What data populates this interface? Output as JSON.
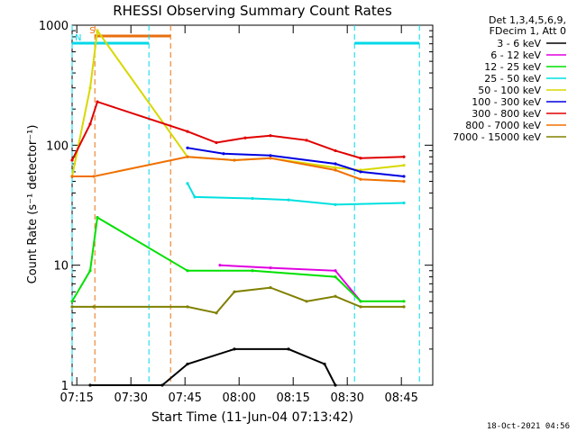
{
  "chart_data": {
    "type": "line",
    "title": "RHESSI Observing Summary Count Rates",
    "xlabel": "Start Time (11-Jun-04 07:13:42)",
    "ylabel": "Count Rate (s⁻¹ detector⁻¹)",
    "yscale": "log",
    "ylim": [
      1,
      1000
    ],
    "xlim_minutes_after_0713_42": [
      0,
      100
    ],
    "xticks": [
      "07:15",
      "07:30",
      "07:45",
      "08:00",
      "08:15",
      "08:30",
      "08:45"
    ],
    "yticks": [
      "1",
      "10",
      "100",
      "1000"
    ],
    "legend_header": [
      "Det 1,3,4,5,6,9,",
      "FDecim 1, Att 0"
    ],
    "legend_position": "right",
    "timestamp": "18-Oct-2021 04:56",
    "flags": [
      {
        "label": "S",
        "color": "#e87010",
        "start": "07:20",
        "end": "07:41"
      },
      {
        "label": "N",
        "color": "#00d8e8",
        "start": "07:13:42",
        "end": "07:35"
      },
      {
        "label": "",
        "color": "#00d8e8",
        "start": "08:32",
        "end": "08:50"
      }
    ],
    "series": [
      {
        "name": "3 - 6 keV",
        "color": "#000000",
        "values": [
          [
            5,
            1
          ],
          [
            25,
            1
          ],
          [
            32,
            1.5
          ],
          [
            45,
            2
          ],
          [
            60,
            2
          ],
          [
            70,
            1.5
          ],
          [
            73,
            1
          ]
        ]
      },
      {
        "name": "6 - 12 keV",
        "color": "#e000e0",
        "values": [
          [
            41,
            10
          ],
          [
            55,
            9.5
          ],
          [
            73,
            9
          ],
          [
            80,
            5
          ]
        ]
      },
      {
        "name": "12 - 25 keV",
        "color": "#00e000",
        "values": [
          [
            0,
            5
          ],
          [
            5,
            9
          ],
          [
            7,
            25
          ],
          [
            32,
            9
          ],
          [
            50,
            9
          ],
          [
            73,
            8
          ],
          [
            80,
            5
          ],
          [
            92,
            5
          ]
        ]
      },
      {
        "name": "25 - 50 keV",
        "color": "#00e0e0",
        "values": [
          [
            32,
            48
          ],
          [
            34,
            37
          ],
          [
            50,
            36
          ],
          [
            60,
            35
          ],
          [
            73,
            32
          ],
          [
            92,
            33
          ]
        ]
      },
      {
        "name": "50 - 100 keV",
        "color": "#d8d800",
        "values": [
          [
            0,
            55
          ],
          [
            5,
            300
          ],
          [
            7,
            900
          ],
          [
            32,
            80
          ],
          [
            45,
            75
          ],
          [
            55,
            78
          ],
          [
            73,
            65
          ],
          [
            80,
            62
          ],
          [
            92,
            68
          ]
        ]
      },
      {
        "name": "100 - 300 keV",
        "color": "#0000e0",
        "values": [
          [
            32,
            95
          ],
          [
            42,
            85
          ],
          [
            55,
            82
          ],
          [
            73,
            70
          ],
          [
            80,
            60
          ],
          [
            92,
            55
          ]
        ]
      },
      {
        "name": "300 - 800 keV",
        "color": "#e00000",
        "values": [
          [
            0,
            75
          ],
          [
            5,
            150
          ],
          [
            7,
            230
          ],
          [
            32,
            130
          ],
          [
            40,
            105
          ],
          [
            48,
            115
          ],
          [
            55,
            120
          ],
          [
            65,
            110
          ],
          [
            73,
            90
          ],
          [
            80,
            78
          ],
          [
            92,
            80
          ]
        ]
      },
      {
        "name": "800 - 7000 keV",
        "color": "#f07000",
        "values": [
          [
            0,
            55
          ],
          [
            6,
            55
          ],
          [
            32,
            80
          ],
          [
            45,
            75
          ],
          [
            55,
            78
          ],
          [
            73,
            62
          ],
          [
            80,
            52
          ],
          [
            92,
            50
          ]
        ]
      },
      {
        "name": "7000 - 15000 keV",
        "color": "#808000",
        "values": [
          [
            0,
            4.5
          ],
          [
            6,
            4.5
          ],
          [
            32,
            4.5
          ],
          [
            40,
            4
          ],
          [
            45,
            6
          ],
          [
            55,
            6.5
          ],
          [
            65,
            5
          ],
          [
            73,
            5.5
          ],
          [
            80,
            4.5
          ],
          [
            92,
            4.5
          ]
        ]
      }
    ]
  }
}
